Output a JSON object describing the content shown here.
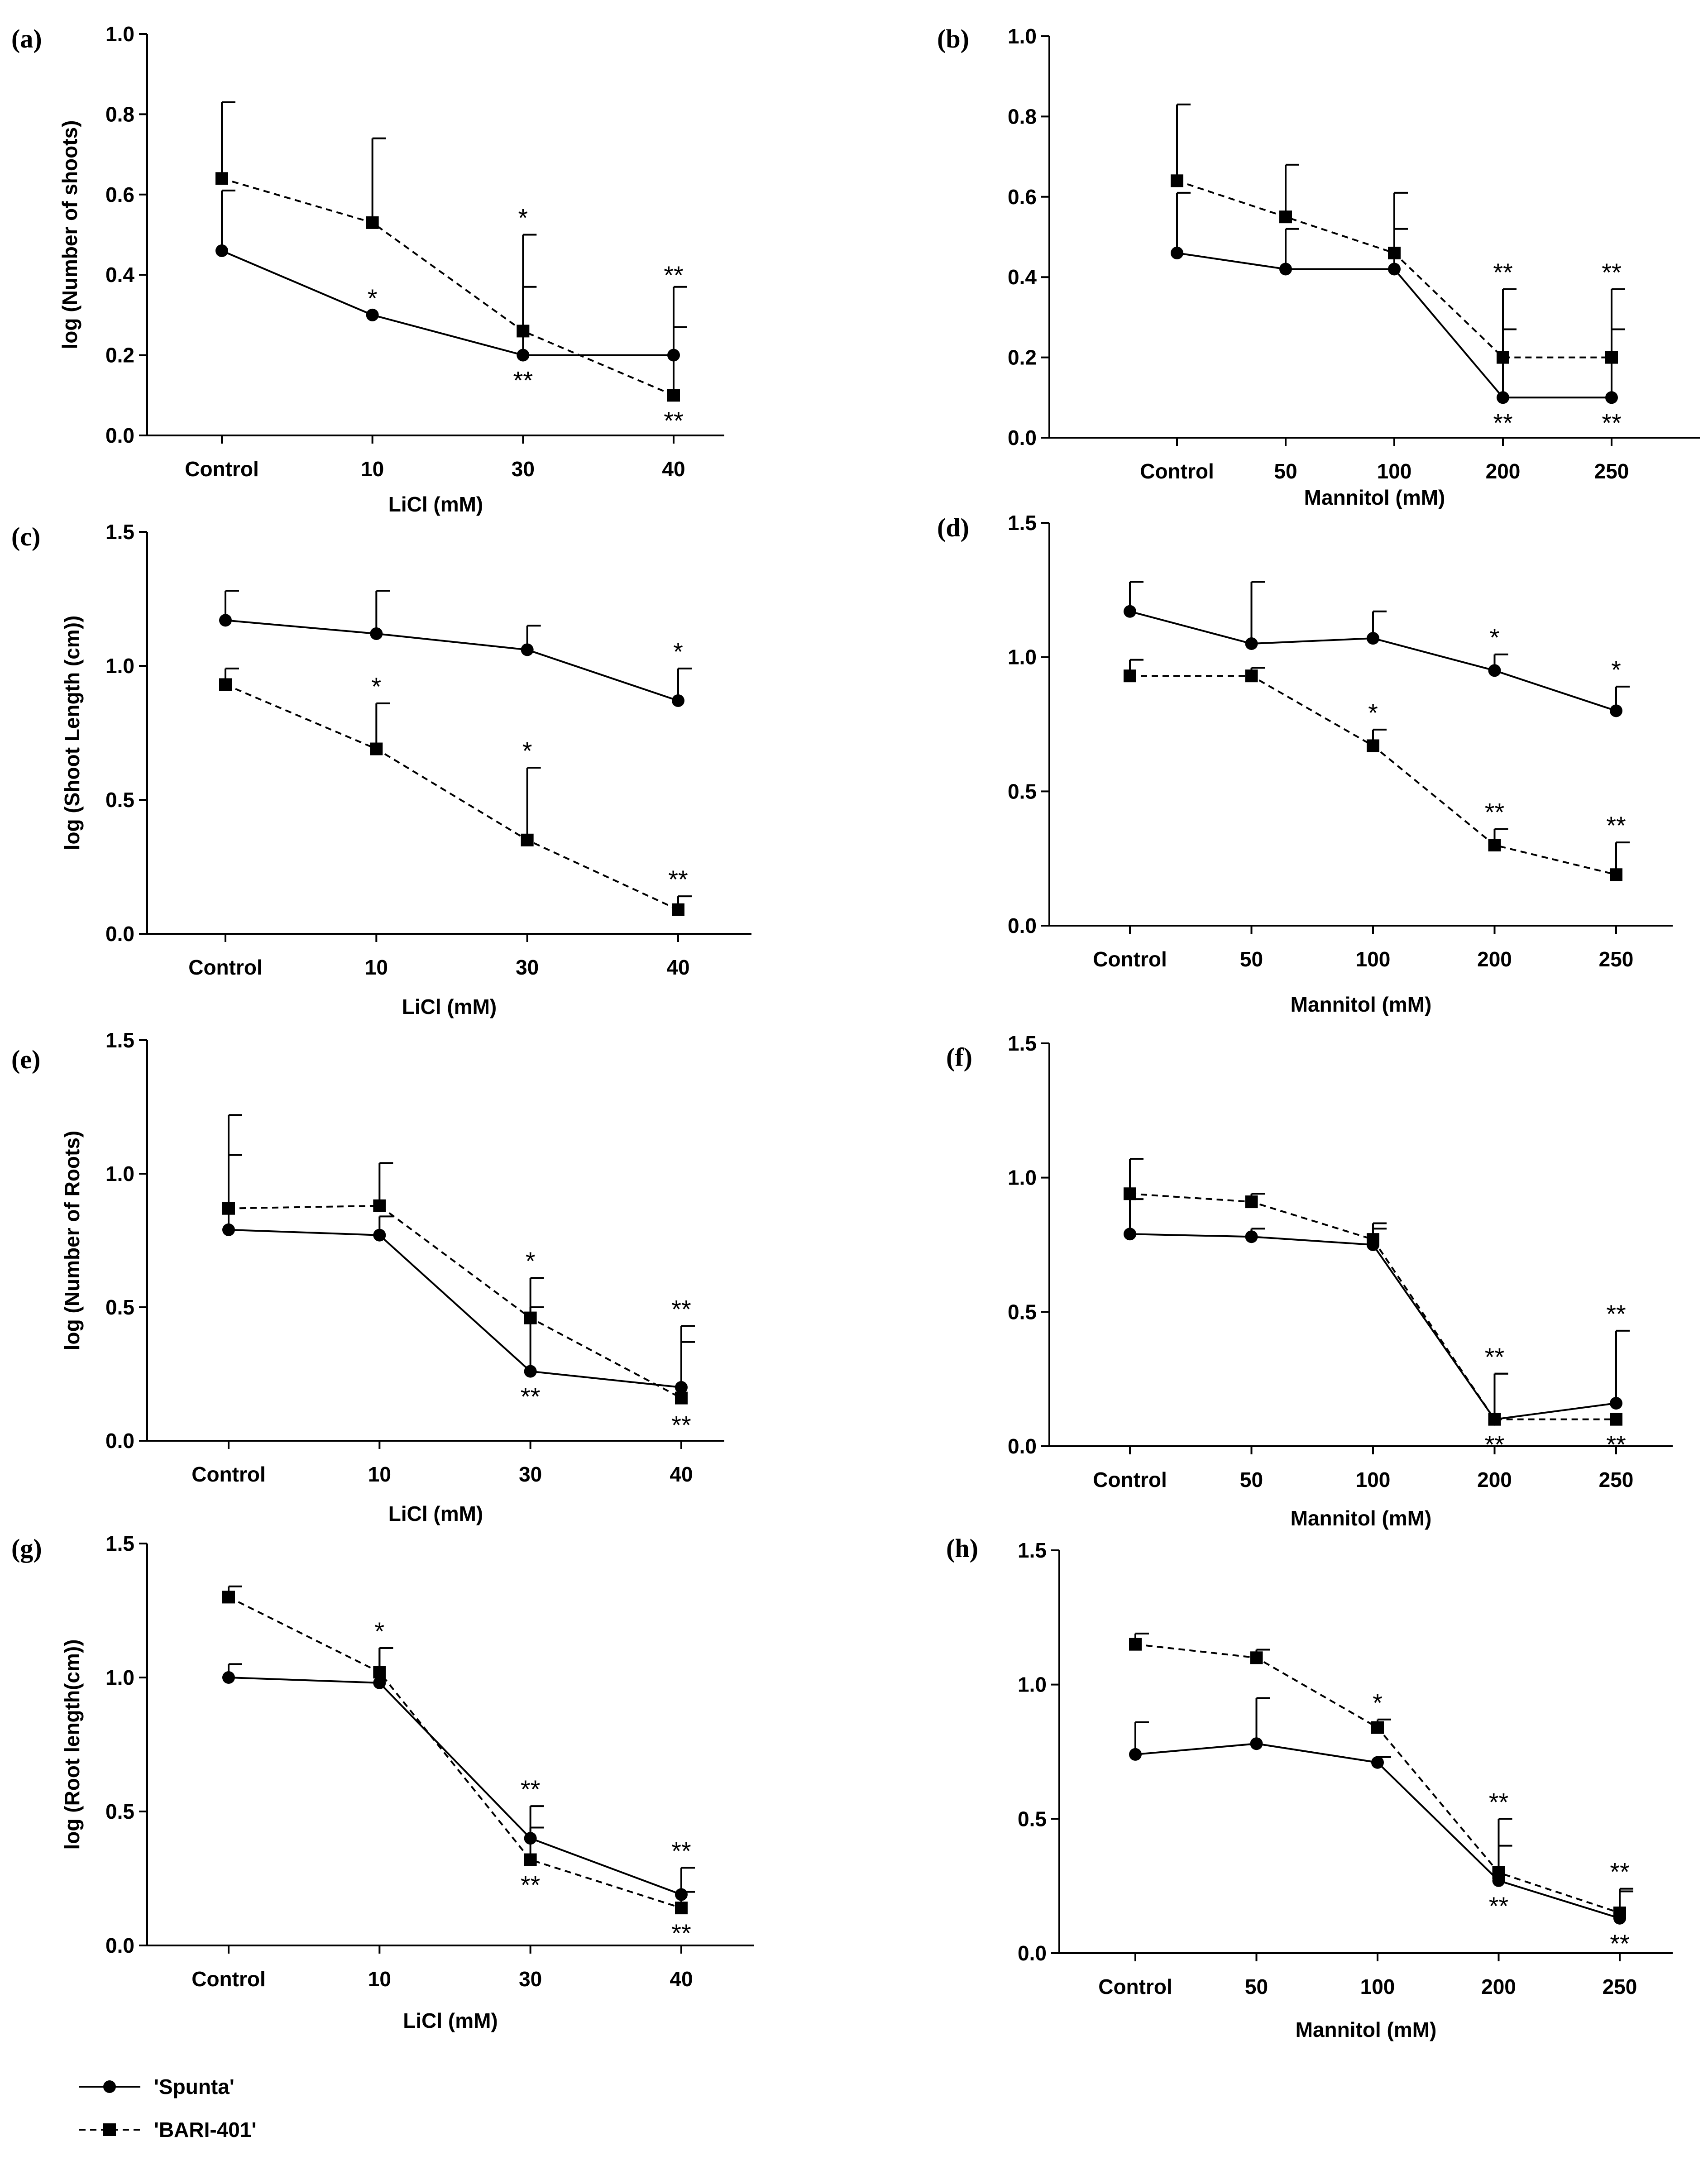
{
  "colors": {
    "line": "#000000",
    "background": "#ffffff"
  },
  "legend": [
    {
      "label": "'Spunta'",
      "marker": "circle",
      "dash": "solid"
    },
    {
      "label": "'BARI-401'",
      "marker": "square",
      "dash": "dashed"
    }
  ],
  "chart_data": [
    {
      "panel": "(a)",
      "type": "line",
      "categories": [
        "Control",
        "10",
        "30",
        "40"
      ],
      "xlabel": "LiCl (mM)",
      "ylabel": "log (Number of shoots)",
      "ylim": [
        0,
        1.0
      ],
      "yticks": [
        "0.0",
        "0.2",
        "0.4",
        "0.6",
        "0.8",
        "1.0"
      ],
      "series": [
        {
          "name": "'Spunta'",
          "values": [
            0.46,
            0.3,
            0.2,
            0.2
          ],
          "err": [
            0.15,
            0,
            0.17,
            0.07
          ],
          "sig": [
            "",
            "*",
            "**",
            ""
          ],
          "sigpos": [
            "",
            "above",
            "below",
            ""
          ]
        },
        {
          "name": "'BARI-401'",
          "values": [
            0.64,
            0.53,
            0.26,
            0.1
          ],
          "err": [
            0.19,
            0.21,
            0.24,
            0.27
          ],
          "sig": [
            "",
            "",
            "*",
            "**"
          ],
          "sigpos": [
            "",
            "",
            "above",
            "below"
          ]
        }
      ],
      "extra_sig": [
        {
          "cat": 3,
          "text": "**",
          "value": 0.4
        }
      ]
    },
    {
      "panel": "(b)",
      "type": "line",
      "categories": [
        "Control",
        "50",
        "100",
        "200",
        "250"
      ],
      "xlabel": "Mannitol (mM)",
      "ylabel": "",
      "ylim": [
        0,
        1.0
      ],
      "yticks": [
        "0.0",
        "0.2",
        "0.4",
        "0.6",
        "0.8",
        "1.0"
      ],
      "series": [
        {
          "name": "'Spunta'",
          "values": [
            0.46,
            0.42,
            0.42,
            0.1,
            0.1
          ],
          "err": [
            0.15,
            0.1,
            0.1,
            0.17,
            0.17
          ],
          "sig": [
            "",
            "",
            "",
            "**",
            "**"
          ],
          "sigpos": [
            "",
            "",
            "",
            "below",
            "below"
          ]
        },
        {
          "name": "'BARI-401'",
          "values": [
            0.64,
            0.55,
            0.46,
            0.2,
            0.2
          ],
          "err": [
            0.19,
            0.13,
            0.15,
            0.17,
            0.17
          ],
          "sig": [
            "",
            "",
            "",
            "**",
            "**"
          ],
          "sigpos": [
            "",
            "",
            "",
            "above",
            "above"
          ]
        }
      ]
    },
    {
      "panel": "(c)",
      "type": "line",
      "categories": [
        "Control",
        "10",
        "30",
        "40"
      ],
      "xlabel": "LiCl (mM)",
      "ylabel": "log (Shoot Length (cm))",
      "ylim": [
        0,
        1.5
      ],
      "yticks": [
        "0.0",
        "0.5",
        "1.0",
        "1.5"
      ],
      "series": [
        {
          "name": "'Spunta'",
          "values": [
            1.17,
            1.12,
            1.06,
            0.87
          ],
          "err": [
            0.11,
            0.16,
            0.09,
            0.12
          ],
          "sig": [
            "",
            "",
            "",
            "*"
          ],
          "sigpos": [
            "",
            "",
            "",
            "above"
          ]
        },
        {
          "name": "'BARI-401'",
          "values": [
            0.93,
            0.69,
            0.35,
            0.09
          ],
          "err": [
            0.06,
            0.17,
            0.27,
            0.05
          ],
          "sig": [
            "",
            "*",
            "*",
            "**"
          ],
          "sigpos": [
            "",
            "above",
            "above",
            "above"
          ]
        }
      ]
    },
    {
      "panel": "(d)",
      "type": "line",
      "categories": [
        "Control",
        "50",
        "100",
        "200",
        "250"
      ],
      "xlabel": "Mannitol (mM)",
      "ylabel": "",
      "ylim": [
        0,
        1.5
      ],
      "yticks": [
        "0.0",
        "0.5",
        "1.0",
        "1.5"
      ],
      "series": [
        {
          "name": "'Spunta'",
          "values": [
            1.17,
            1.05,
            1.07,
            0.95,
            0.8
          ],
          "err": [
            0.11,
            0.23,
            0.1,
            0.06,
            0.09
          ],
          "sig": [
            "",
            "",
            "",
            "*",
            "*"
          ],
          "sigpos": [
            "",
            "",
            "",
            "above",
            "above"
          ]
        },
        {
          "name": "'BARI-401'",
          "values": [
            0.93,
            0.93,
            0.67,
            0.3,
            0.19
          ],
          "err": [
            0.06,
            0.03,
            0.06,
            0.06,
            0.12
          ],
          "sig": [
            "",
            "",
            "*",
            "**",
            "**"
          ],
          "sigpos": [
            "",
            "",
            "above",
            "above",
            "above"
          ]
        }
      ]
    },
    {
      "panel": "(e)",
      "type": "line",
      "categories": [
        "Control",
        "10",
        "30",
        "40"
      ],
      "xlabel": "LiCl (mM)",
      "ylabel": "log (Number of Roots)",
      "ylim": [
        0,
        1.5
      ],
      "yticks": [
        "0.0",
        "0.5",
        "1.0",
        "1.5"
      ],
      "series": [
        {
          "name": "'Spunta'",
          "values": [
            0.79,
            0.77,
            0.26,
            0.2
          ],
          "err": [
            0.28,
            0.07,
            0.24,
            0.17
          ],
          "sig": [
            "",
            "",
            "**",
            ""
          ],
          "sigpos": [
            "",
            "",
            "below",
            ""
          ]
        },
        {
          "name": "'BARI-401'",
          "values": [
            0.87,
            0.88,
            0.46,
            0.16
          ],
          "err": [
            0.35,
            0.16,
            0.15,
            0.27
          ],
          "sig": [
            "",
            "",
            "*",
            "**"
          ],
          "sigpos": [
            "",
            "",
            "above",
            "above"
          ]
        }
      ],
      "extra_sig": [
        {
          "cat": 3,
          "text": "**",
          "value": 0.06
        }
      ]
    },
    {
      "panel": "(f)",
      "type": "line",
      "categories": [
        "Control",
        "50",
        "100",
        "200",
        "250"
      ],
      "xlabel": "Mannitol (mM)",
      "ylabel": "",
      "ylim": [
        0,
        1.5
      ],
      "yticks": [
        "0.0",
        "0.5",
        "1.0",
        "1.5"
      ],
      "series": [
        {
          "name": "'Spunta'",
          "values": [
            0.79,
            0.78,
            0.75,
            0.1,
            0.16
          ],
          "err": [
            0.13,
            0.03,
            0.06,
            0.17,
            0.27
          ],
          "sig": [
            "",
            "",
            "",
            "**",
            "**"
          ],
          "sigpos": [
            "",
            "",
            "",
            "above",
            "above"
          ]
        },
        {
          "name": "'BARI-401'",
          "values": [
            0.94,
            0.91,
            0.77,
            0.1,
            0.1
          ],
          "err": [
            0.13,
            0.03,
            0.06,
            0.17,
            0
          ],
          "sig": [
            "",
            "",
            "",
            "**",
            "**"
          ],
          "sigpos": [
            "",
            "",
            "",
            "below",
            "below"
          ]
        }
      ]
    },
    {
      "panel": "(g)",
      "type": "line",
      "categories": [
        "Control",
        "10",
        "30",
        "40"
      ],
      "xlabel": "LiCl (mM)",
      "ylabel": "log (Root length(cm))",
      "ylim": [
        0,
        1.5
      ],
      "yticks": [
        "0.0",
        "0.5",
        "1.0",
        "1.5"
      ],
      "series": [
        {
          "name": "'Spunta'",
          "values": [
            1.0,
            0.98,
            0.4,
            0.19
          ],
          "err": [
            0.05,
            0.13,
            0.12,
            0.1
          ],
          "sig": [
            "",
            "",
            "**",
            "**"
          ],
          "sigpos": [
            "",
            "",
            "above",
            "above"
          ]
        },
        {
          "name": "'BARI-401'",
          "values": [
            1.3,
            1.02,
            0.32,
            0.14
          ],
          "err": [
            0.04,
            0.09,
            0.12,
            0.06
          ],
          "sig": [
            "",
            "*",
            "**",
            "**"
          ],
          "sigpos": [
            "",
            "above",
            "below",
            "below"
          ]
        }
      ]
    },
    {
      "panel": "(h)",
      "type": "line",
      "categories": [
        "Control",
        "50",
        "100",
        "200",
        "250"
      ],
      "xlabel": "Mannitol (mM)",
      "ylabel": "",
      "ylim": [
        0,
        1.5
      ],
      "yticks": [
        "0.0",
        "0.5",
        "1.0",
        "1.5"
      ],
      "series": [
        {
          "name": "'Spunta'",
          "values": [
            0.74,
            0.78,
            0.71,
            0.27,
            0.13
          ],
          "err": [
            0.12,
            0.17,
            0.02,
            0.13,
            0.1
          ],
          "sig": [
            "",
            "",
            "",
            "**",
            "**"
          ],
          "sigpos": [
            "",
            "",
            "",
            "below",
            "below"
          ]
        },
        {
          "name": "'BARI-401'",
          "values": [
            1.15,
            1.1,
            0.84,
            0.3,
            0.15
          ],
          "err": [
            0.04,
            0.03,
            0.03,
            0.2,
            0.09
          ],
          "sig": [
            "",
            "",
            "*",
            "**",
            "**"
          ],
          "sigpos": [
            "",
            "",
            "above",
            "above",
            "above"
          ]
        }
      ]
    }
  ]
}
